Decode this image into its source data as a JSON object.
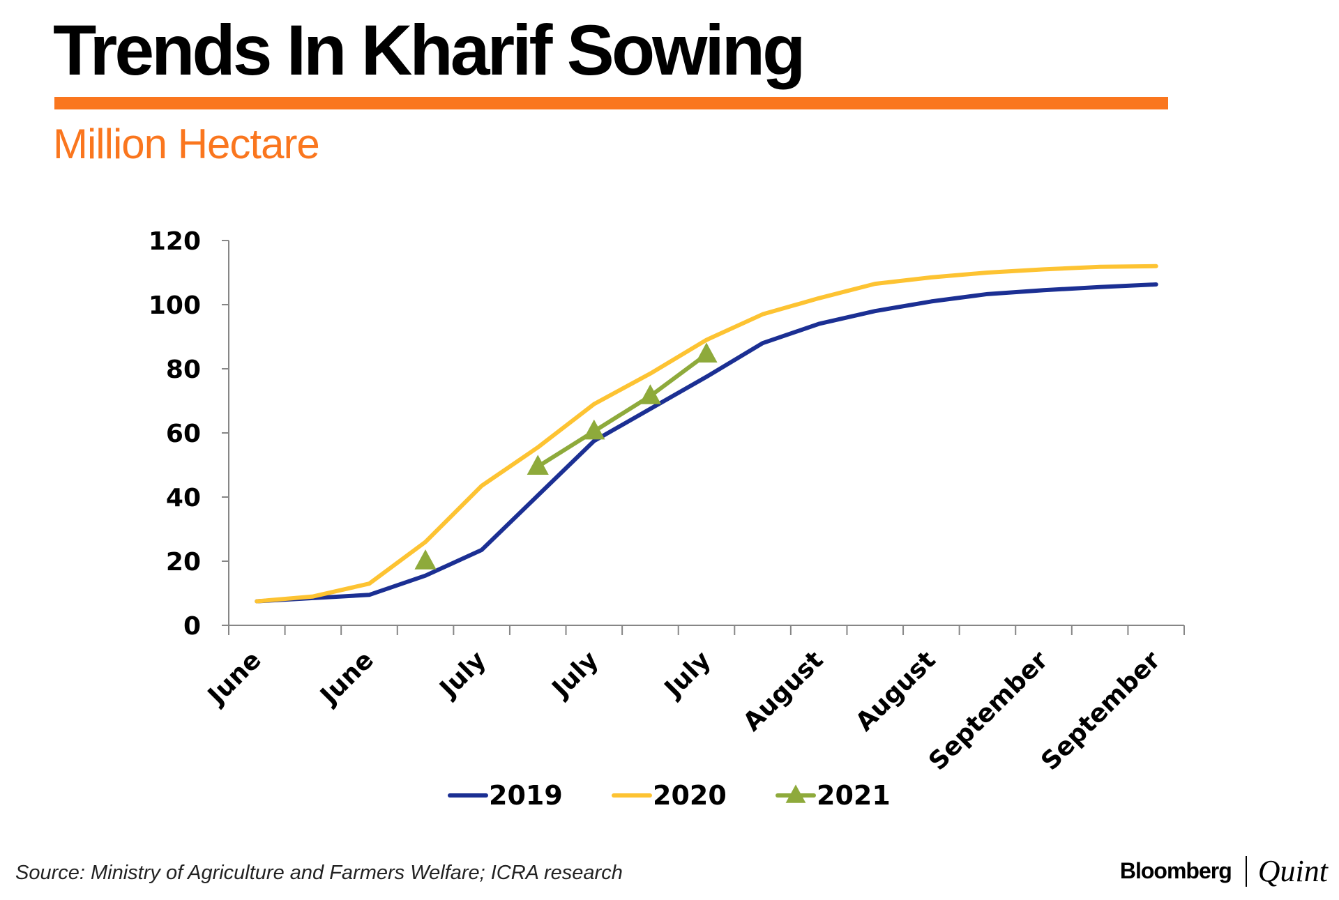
{
  "header": {
    "title": "Trends In Kharif Sowing",
    "subtitle": "Million Hectare"
  },
  "colors": {
    "accent": "#fa761e",
    "series_2019": "#1b2f93",
    "series_2020": "#fdc332",
    "series_2021": "#8eaa3b"
  },
  "footer": {
    "source": "Source: Ministry of Agriculture and Farmers Welfare; ICRA research",
    "brand_left": "Bloomberg",
    "brand_right": "Quint"
  },
  "chart_data": {
    "type": "line",
    "title": "Trends In Kharif Sowing",
    "ylabel": "Million Hectare",
    "xlabel": "",
    "ylim": [
      0,
      120
    ],
    "yticks": [
      0,
      20,
      40,
      60,
      80,
      100,
      120
    ],
    "x": [
      1,
      2,
      3,
      4,
      5,
      6,
      7,
      8,
      9,
      10,
      11,
      12,
      13,
      14,
      15,
      16,
      17
    ],
    "xtick_labels": [
      {
        "x": 1,
        "label": "June"
      },
      {
        "x": 3,
        "label": "June"
      },
      {
        "x": 5,
        "label": "July"
      },
      {
        "x": 7,
        "label": "July"
      },
      {
        "x": 9,
        "label": "July"
      },
      {
        "x": 11,
        "label": "August"
      },
      {
        "x": 13,
        "label": "August"
      },
      {
        "x": 15,
        "label": "September"
      },
      {
        "x": 17,
        "label": "September"
      }
    ],
    "series": [
      {
        "name": "2019",
        "marker": "none",
        "values": [
          7.5,
          8.5,
          9.5,
          15.5,
          23.5,
          40.5,
          57.5,
          67.5,
          77.5,
          88,
          94,
          98,
          101,
          103.3,
          104.5,
          105.5,
          106.3
        ]
      },
      {
        "name": "2020",
        "marker": "none",
        "values": [
          7.5,
          9,
          13,
          26,
          43.5,
          55.5,
          69,
          78.5,
          89,
          97,
          102,
          106.5,
          108.5,
          110,
          111,
          111.8,
          112
        ]
      },
      {
        "name": "2021",
        "marker": "triangle",
        "values": [
          null,
          null,
          null,
          20,
          null,
          49.5,
          60.5,
          71.5,
          84.5,
          null,
          null,
          null,
          null,
          null,
          null,
          null,
          null
        ]
      }
    ],
    "legend_position": "bottom-center",
    "grid": false
  }
}
